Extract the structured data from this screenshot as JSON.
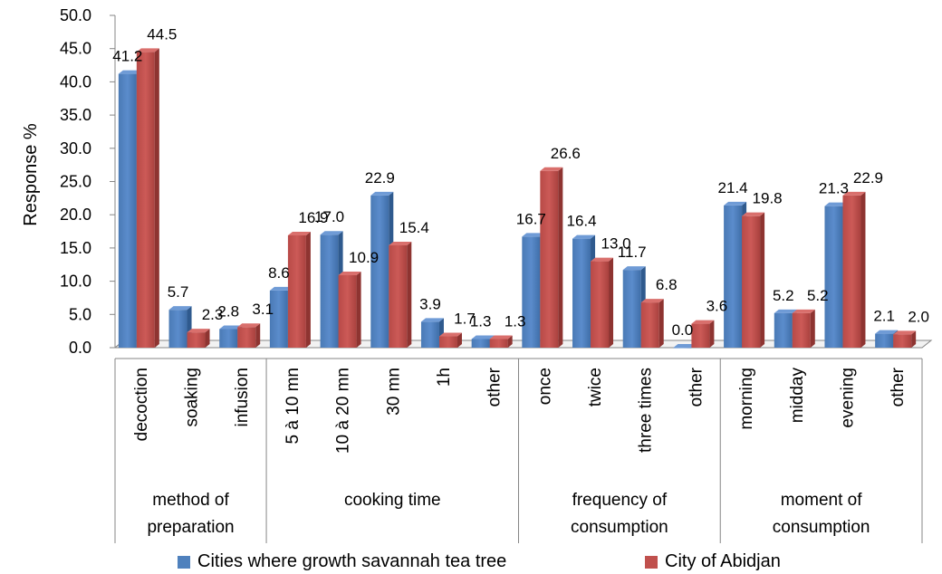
{
  "chart_data": {
    "type": "bar",
    "ylabel": "Response %",
    "ylim": [
      0,
      50
    ],
    "yticks": [
      "0.0",
      "5.0",
      "10.0",
      "15.0",
      "20.0",
      "25.0",
      "30.0",
      "35.0",
      "40.0",
      "45.0",
      "50.0"
    ],
    "groups": [
      {
        "label_lines": [
          "method of",
          "preparation"
        ],
        "categories": [
          "decoction",
          "soaking",
          "infusion"
        ]
      },
      {
        "label_lines": [
          "cooking time"
        ],
        "categories": [
          "5 à 10 mn",
          "10 à 20 mn",
          "30 mn",
          "1h",
          "other"
        ]
      },
      {
        "label_lines": [
          "frequency of",
          "consumption"
        ],
        "categories": [
          "once",
          "twice",
          "three times",
          "other"
        ]
      },
      {
        "label_lines": [
          "moment of",
          "consumption"
        ],
        "categories": [
          "morning",
          "midday",
          "evening",
          "other"
        ]
      }
    ],
    "series": [
      {
        "name": "Cities where growth savannah tea tree",
        "color": "#4f81bd",
        "values": [
          41.2,
          5.7,
          2.8,
          8.6,
          17.0,
          22.9,
          3.9,
          1.3,
          16.7,
          16.4,
          11.7,
          0.0,
          21.4,
          5.2,
          21.3,
          2.1
        ],
        "labels": [
          "41.2",
          "5.7",
          "2.8",
          "8.6",
          "17.0",
          "22.9",
          "3.9",
          "1.3",
          "16.7",
          "16.4",
          "11.7",
          "0.0",
          "21.4",
          "5.2",
          "21.3",
          "2.1"
        ]
      },
      {
        "name": "City of Abidjan",
        "color": "#c0504d",
        "values": [
          44.5,
          2.3,
          3.1,
          16.9,
          10.9,
          15.4,
          1.7,
          1.3,
          26.6,
          13.0,
          6.8,
          3.6,
          19.8,
          5.2,
          22.9,
          2.0
        ],
        "labels": [
          "44.5",
          "2.3",
          "3.1",
          "16.9",
          "10.9",
          "15.4",
          "1.7",
          "1.3",
          "26.6",
          "13.0",
          "6.8",
          "3.6",
          "19.8",
          "5.2",
          "22.9",
          "2.0"
        ]
      }
    ],
    "grid": false,
    "legend_position": "bottom"
  }
}
